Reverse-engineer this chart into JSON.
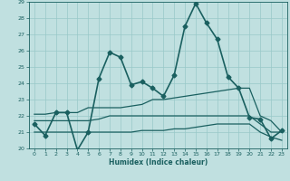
{
  "xlabel": "Humidex (Indice chaleur)",
  "xlim": [
    -0.5,
    23.5
  ],
  "ylim": [
    20,
    29
  ],
  "yticks": [
    20,
    21,
    22,
    23,
    24,
    25,
    26,
    27,
    28,
    29
  ],
  "xticks": [
    0,
    1,
    2,
    3,
    4,
    5,
    6,
    7,
    8,
    9,
    10,
    11,
    12,
    13,
    14,
    15,
    16,
    17,
    18,
    19,
    20,
    21,
    22,
    23
  ],
  "bg_color": "#c0e0e0",
  "grid_color": "#98c8c8",
  "line_color": "#1a6060",
  "series": [
    {
      "x": [
        0,
        1,
        2,
        3,
        4,
        5,
        6,
        7,
        8,
        9,
        10,
        11,
        12,
        13,
        14,
        15,
        16,
        17,
        18,
        19,
        20,
        21,
        22,
        23
      ],
      "y": [
        21.5,
        20.8,
        22.2,
        22.2,
        19.9,
        21.0,
        24.3,
        25.9,
        25.6,
        23.9,
        24.1,
        23.7,
        23.2,
        24.5,
        27.5,
        28.9,
        27.7,
        26.7,
        24.4,
        23.7,
        21.9,
        21.8,
        20.6,
        21.1
      ],
      "marker": "D",
      "markersize": 2.5,
      "linewidth": 1.2
    },
    {
      "x": [
        0,
        1,
        2,
        3,
        4,
        5,
        6,
        7,
        8,
        9,
        10,
        11,
        12,
        13,
        14,
        15,
        16,
        17,
        18,
        19,
        20,
        21,
        22,
        23
      ],
      "y": [
        22.1,
        22.1,
        22.2,
        22.2,
        22.2,
        22.5,
        22.5,
        22.5,
        22.5,
        22.6,
        22.7,
        23.0,
        23.0,
        23.1,
        23.2,
        23.3,
        23.4,
        23.5,
        23.6,
        23.7,
        23.7,
        22.0,
        21.7,
        21.0
      ],
      "marker": null,
      "linewidth": 0.9
    },
    {
      "x": [
        0,
        1,
        2,
        3,
        4,
        5,
        6,
        7,
        8,
        9,
        10,
        11,
        12,
        13,
        14,
        15,
        16,
        17,
        18,
        19,
        20,
        21,
        22,
        23
      ],
      "y": [
        21.7,
        21.7,
        21.7,
        21.7,
        21.7,
        21.7,
        21.8,
        22.0,
        22.0,
        22.0,
        22.0,
        22.0,
        22.0,
        22.0,
        22.0,
        22.0,
        22.0,
        22.0,
        22.0,
        22.0,
        22.0,
        21.5,
        21.0,
        21.0
      ],
      "marker": null,
      "linewidth": 0.9
    },
    {
      "x": [
        0,
        1,
        2,
        3,
        4,
        5,
        6,
        7,
        8,
        9,
        10,
        11,
        12,
        13,
        14,
        15,
        16,
        17,
        18,
        19,
        20,
        21,
        22,
        23
      ],
      "y": [
        21.0,
        21.0,
        21.0,
        21.0,
        21.0,
        21.0,
        21.0,
        21.0,
        21.0,
        21.0,
        21.1,
        21.1,
        21.1,
        21.2,
        21.2,
        21.3,
        21.4,
        21.5,
        21.5,
        21.5,
        21.5,
        21.0,
        20.7,
        20.5
      ],
      "marker": null,
      "linewidth": 0.9
    }
  ]
}
